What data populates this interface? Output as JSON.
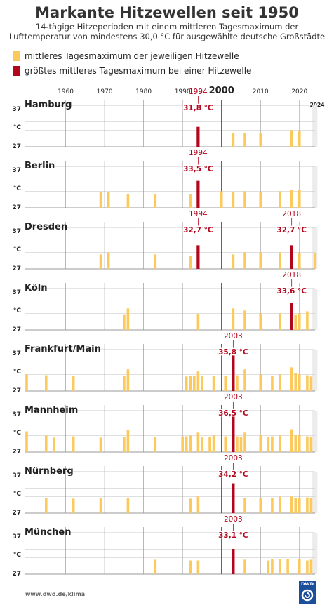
{
  "header": {
    "title": "Markante Hitzewellen seit 1950",
    "subtitle_line1": "14-tägige Hitzeperioden mit einem mittleren Tagesmaximum der",
    "subtitle_line2": "Lufttemperatur von mindestens 30,0 °C für ausgewählte deutsche Großstädte"
  },
  "legend": {
    "item1": "mittleres Tagesmaximum der jeweiligen Hitzewelle",
    "item2": "größtes mittleres Tagesmaximum bei einer Hitzewelle"
  },
  "footer": {
    "source": "www.dwd.de/klima",
    "logo": "DWD"
  },
  "colors": {
    "bar": "#fcc95c",
    "max_bar": "#b3061c",
    "annotation": "#b3061c"
  },
  "chart_data": {
    "type": "bar",
    "x_ticks": [
      "1960",
      "1970",
      "1980",
      "1990",
      "2000",
      "2010",
      "2020"
    ],
    "x_ticks_bold": "2000",
    "x_end_label": "2024",
    "xlim": [
      1950,
      2024
    ],
    "ylim": [
      27,
      37
    ],
    "y_top_label": "37",
    "y_unit_label": "°C",
    "y_bottom_label": "27",
    "cities": [
      {
        "name": "Hamburg",
        "highlight": [
          {
            "year": "1994",
            "value": "31,8 °C"
          }
        ],
        "bars": [
          [
            1994,
            31.8,
            1
          ],
          [
            2003,
            30.3,
            0
          ],
          [
            2006,
            30.3,
            0
          ],
          [
            2010,
            30.2,
            0
          ],
          [
            2018,
            31.0,
            0
          ],
          [
            2020,
            30.7,
            0
          ]
        ]
      },
      {
        "name": "Berlin",
        "highlight": [
          {
            "year": "1994",
            "value": "33,5 °C"
          }
        ],
        "bars": [
          [
            1969,
            30.8,
            0
          ],
          [
            1971,
            30.8,
            0
          ],
          [
            1976,
            30.3,
            0
          ],
          [
            1983,
            30.3,
            0
          ],
          [
            1992,
            30.2,
            0
          ],
          [
            1994,
            33.5,
            1
          ],
          [
            2000,
            31.0,
            0
          ],
          [
            2003,
            30.8,
            0
          ],
          [
            2006,
            31.0,
            0
          ],
          [
            2010,
            30.8,
            0
          ],
          [
            2015,
            31.0,
            0
          ],
          [
            2018,
            31.3,
            0
          ],
          [
            2020,
            31.3,
            0
          ]
        ]
      },
      {
        "name": "Dresden",
        "highlight": [
          {
            "year": "1994",
            "value": "32,7 °C"
          },
          {
            "year": "2018",
            "value": "32,7 °C"
          }
        ],
        "bars": [
          [
            1969,
            30.5,
            0
          ],
          [
            1971,
            31.0,
            0
          ],
          [
            1983,
            30.5,
            0
          ],
          [
            1992,
            30.2,
            0
          ],
          [
            1994,
            32.7,
            1
          ],
          [
            2003,
            30.5,
            0
          ],
          [
            2006,
            31.0,
            0
          ],
          [
            2010,
            31.0,
            0
          ],
          [
            2015,
            31.0,
            0
          ],
          [
            2018,
            32.7,
            1
          ],
          [
            2020,
            30.8,
            0
          ],
          [
            2024,
            30.8,
            0
          ]
        ]
      },
      {
        "name": "Köln",
        "highlight": [
          {
            "year": "2018",
            "value": "33,6 °C"
          }
        ],
        "bars": [
          [
            1975,
            30.6,
            0
          ],
          [
            1976,
            32.2,
            0
          ],
          [
            1994,
            30.8,
            0
          ],
          [
            2003,
            32.2,
            0
          ],
          [
            2006,
            31.7,
            0
          ],
          [
            2010,
            31.0,
            0
          ],
          [
            2015,
            31.0,
            0
          ],
          [
            2018,
            33.6,
            1
          ],
          [
            2019,
            30.6,
            0
          ],
          [
            2020,
            31.0,
            0
          ],
          [
            2022,
            31.5,
            0
          ]
        ]
      },
      {
        "name": "Frankfurt/Main",
        "highlight": [
          {
            "year": "2003",
            "value": "35,8 °C"
          }
        ],
        "bars": [
          [
            1950,
            31.0,
            0
          ],
          [
            1955,
            30.8,
            0
          ],
          [
            1962,
            30.7,
            0
          ],
          [
            1975,
            30.6,
            0
          ],
          [
            1976,
            32.2,
            0
          ],
          [
            1991,
            30.5,
            0
          ],
          [
            1992,
            30.7,
            0
          ],
          [
            1993,
            30.7,
            0
          ],
          [
            1994,
            31.7,
            0
          ],
          [
            1995,
            30.6,
            0
          ],
          [
            1998,
            30.6,
            0
          ],
          [
            2001,
            30.6,
            0
          ],
          [
            2003,
            35.8,
            1
          ],
          [
            2004,
            30.8,
            0
          ],
          [
            2006,
            32.2,
            0
          ],
          [
            2010,
            31.0,
            0
          ],
          [
            2013,
            30.6,
            0
          ],
          [
            2015,
            31.0,
            0
          ],
          [
            2018,
            32.7,
            0
          ],
          [
            2019,
            31.3,
            0
          ],
          [
            2020,
            31.0,
            0
          ],
          [
            2022,
            30.8,
            0
          ],
          [
            2023,
            30.5,
            0
          ]
        ]
      },
      {
        "name": "Mannheim",
        "highlight": [
          {
            "year": "2003",
            "value": "36,5 °C"
          }
        ],
        "bars": [
          [
            1950,
            32.0,
            0
          ],
          [
            1955,
            31.0,
            0
          ],
          [
            1957,
            30.5,
            0
          ],
          [
            1962,
            30.8,
            0
          ],
          [
            1969,
            30.5,
            0
          ],
          [
            1975,
            30.7,
            0
          ],
          [
            1976,
            32.3,
            0
          ],
          [
            1983,
            30.7,
            0
          ],
          [
            1990,
            30.8,
            0
          ],
          [
            1991,
            30.8,
            0
          ],
          [
            1992,
            31.0,
            0
          ],
          [
            1994,
            31.7,
            0
          ],
          [
            1995,
            30.6,
            0
          ],
          [
            1997,
            30.6,
            0
          ],
          [
            1998,
            31.0,
            0
          ],
          [
            2001,
            30.8,
            0
          ],
          [
            2003,
            36.5,
            1
          ],
          [
            2004,
            30.8,
            0
          ],
          [
            2005,
            30.6,
            0
          ],
          [
            2006,
            31.7,
            0
          ],
          [
            2010,
            31.2,
            0
          ],
          [
            2012,
            30.6,
            0
          ],
          [
            2013,
            30.8,
            0
          ],
          [
            2015,
            31.0,
            0
          ],
          [
            2018,
            32.5,
            0
          ],
          [
            2019,
            31.0,
            0
          ],
          [
            2020,
            31.2,
            0
          ],
          [
            2022,
            30.8,
            0
          ],
          [
            2023,
            30.6,
            0
          ]
        ]
      },
      {
        "name": "Nürnberg",
        "highlight": [
          {
            "year": "2003",
            "value": "34,2 °C"
          }
        ],
        "bars": [
          [
            1955,
            30.6,
            0
          ],
          [
            1962,
            30.5,
            0
          ],
          [
            1969,
            30.6,
            0
          ],
          [
            1976,
            30.7,
            0
          ],
          [
            1992,
            30.5,
            0
          ],
          [
            1994,
            31.0,
            0
          ],
          [
            2003,
            34.2,
            1
          ],
          [
            2006,
            30.7,
            0
          ],
          [
            2010,
            30.6,
            0
          ],
          [
            2013,
            30.6,
            0
          ],
          [
            2015,
            31.0,
            0
          ],
          [
            2018,
            31.0,
            0
          ],
          [
            2019,
            30.6,
            0
          ],
          [
            2020,
            30.6,
            0
          ],
          [
            2022,
            30.8,
            0
          ],
          [
            2023,
            30.6,
            0
          ]
        ]
      },
      {
        "name": "München",
        "highlight": [
          {
            "year": "2003",
            "value": "33,1 °C"
          }
        ],
        "bars": [
          [
            1983,
            30.5,
            0
          ],
          [
            1992,
            30.3,
            0
          ],
          [
            1994,
            30.3,
            0
          ],
          [
            2003,
            33.1,
            1
          ],
          [
            2006,
            30.5,
            0
          ],
          [
            2012,
            30.3,
            0
          ],
          [
            2013,
            30.6,
            0
          ],
          [
            2015,
            30.7,
            0
          ],
          [
            2017,
            30.7,
            0
          ],
          [
            2020,
            30.7,
            0
          ],
          [
            2022,
            30.3,
            0
          ],
          [
            2023,
            30.5,
            0
          ]
        ]
      }
    ]
  }
}
